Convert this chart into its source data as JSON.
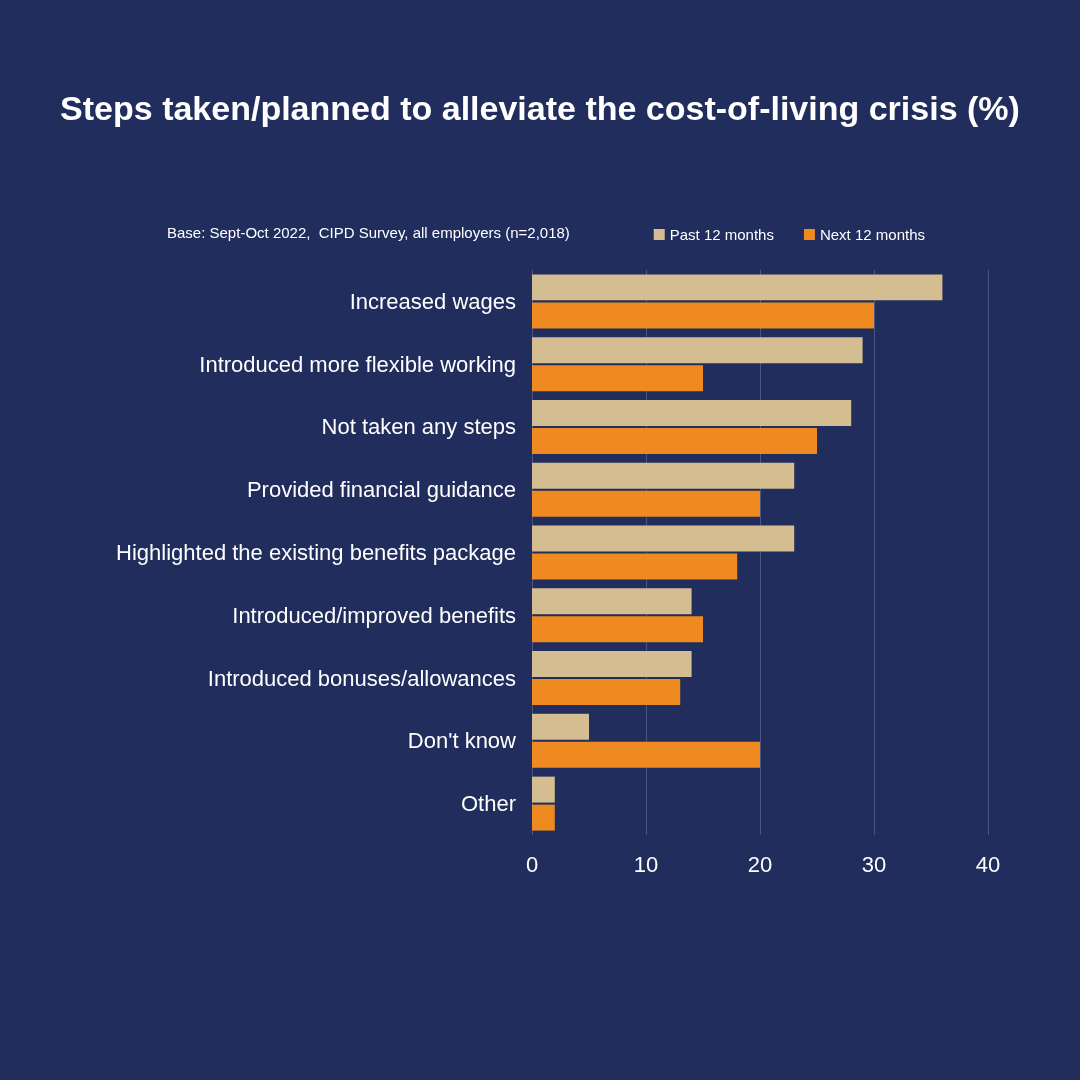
{
  "chart_data": {
    "type": "bar",
    "orientation": "horizontal",
    "title": "Steps taken/planned to alleviate the cost-of-living crisis (%)",
    "annotations": [
      "Base: Sept-Oct 2022,  CIPD Survey, all employers (n=2,018)"
    ],
    "categories": [
      "Increased wages",
      "Introduced more flexible working",
      "Not taken any steps",
      "Provided financial guidance",
      "Highlighted the existing benefits package",
      "Introduced/improved benefits",
      "Introduced bonuses/allowances",
      "Don't know",
      "Other"
    ],
    "series": [
      {
        "name": "Past 12 months",
        "color": "#d4bd90",
        "values": [
          36,
          29,
          28,
          23,
          23,
          14,
          14,
          5,
          2
        ]
      },
      {
        "name": "Next 12 months",
        "color": "#ee8a1f",
        "values": [
          30,
          15,
          25,
          20,
          18,
          15,
          13,
          20,
          2
        ]
      }
    ],
    "xlim": [
      0,
      40
    ],
    "xticks": [
      0,
      10,
      20,
      30,
      40
    ],
    "grid": "x",
    "legend": "top right"
  }
}
